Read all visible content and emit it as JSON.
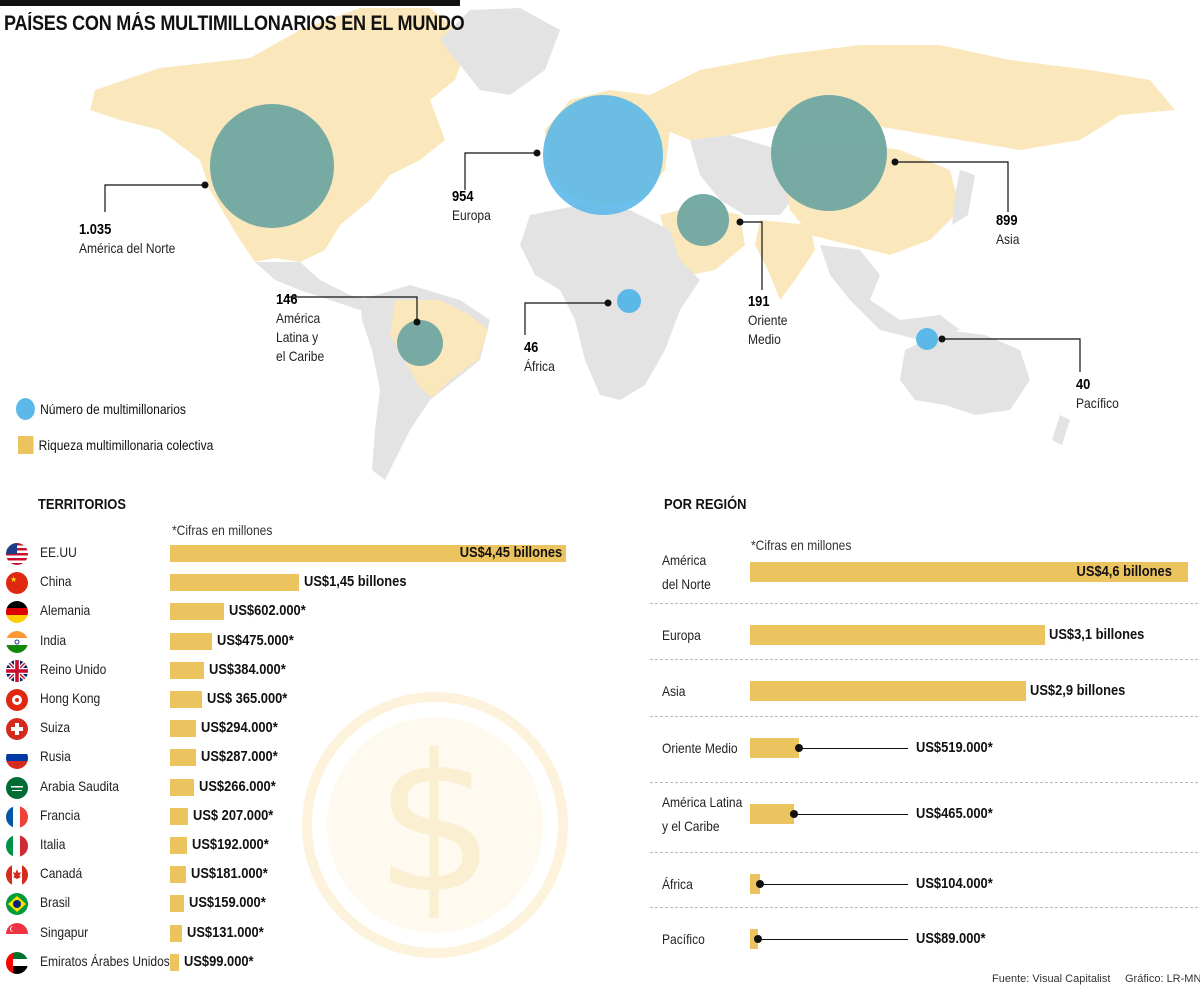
{
  "header": {
    "title": "PAÍSES CON MÁS MULTIMILLONARIOS EN EL MUNDO"
  },
  "colors": {
    "land_gray": "#e3e3e3",
    "wealth_yellow": "#fbe7bc",
    "bar_yellow": "#ecc45f",
    "bubble_blue": "#5bb8e8",
    "bubble_overlap": "#6fa7a0"
  },
  "map": {
    "regions": [
      {
        "value": "1.035",
        "name": "América del Norte",
        "billionaires": 1035
      },
      {
        "value": "954",
        "name": "Europa",
        "billionaires": 954
      },
      {
        "value": "899",
        "name": "Asia",
        "billionaires": 899
      },
      {
        "value": "146",
        "name": "América Latina y el Caribe",
        "name_lines": [
          "América",
          "Latina y",
          "el Caribe"
        ],
        "billionaires": 146
      },
      {
        "value": "46",
        "name": "África",
        "billionaires": 46
      },
      {
        "value": "191",
        "name": "Oriente Medio",
        "name_lines": [
          "Oriente",
          "Medio"
        ],
        "billionaires": 191
      },
      {
        "value": "40",
        "name": "Pacífico",
        "billionaires": 40
      }
    ],
    "legend": {
      "circle_label": "Número de multimillonarios",
      "square_label": "Riqueza multimillonaria colectiva"
    }
  },
  "territories": {
    "title": "TERRITORIOS",
    "note": "*Cifras en millones",
    "items": [
      {
        "name": "EE.UU",
        "label": "US$4,45 billones",
        "value": 4450000,
        "flag": "us-flag-icon"
      },
      {
        "name": "China",
        "label": "US$1,45 billones",
        "value": 1450000,
        "flag": "china-flag-icon"
      },
      {
        "name": "Alemania",
        "label": "US$602.000*",
        "value": 602000,
        "flag": "germany-flag-icon"
      },
      {
        "name": "India",
        "label": "US$475.000*",
        "value": 475000,
        "flag": "india-flag-icon"
      },
      {
        "name": "Reino Unido",
        "label": "US$384.000*",
        "value": 384000,
        "flag": "uk-flag-icon"
      },
      {
        "name": "Hong Kong",
        "label": "US$ 365.000*",
        "value": 365000,
        "flag": "hong-kong-flag-icon"
      },
      {
        "name": "Suiza",
        "label": "US$294.000*",
        "value": 294000,
        "flag": "switzerland-flag-icon"
      },
      {
        "name": "Rusia",
        "label": "US$287.000*",
        "value": 287000,
        "flag": "russia-flag-icon"
      },
      {
        "name": "Arabia Saudita",
        "label": "US$266.000*",
        "value": 266000,
        "flag": "saudi-arabia-flag-icon"
      },
      {
        "name": "Francia",
        "label": "US$ 207.000*",
        "value": 207000,
        "flag": "france-flag-icon"
      },
      {
        "name": "Italia",
        "label": "US$192.000*",
        "value": 192000,
        "flag": "italy-flag-icon"
      },
      {
        "name": "Canadá",
        "label": "US$181.000*",
        "value": 181000,
        "flag": "canada-flag-icon"
      },
      {
        "name": "Brasil",
        "label": "US$159.000*",
        "value": 159000,
        "flag": "brazil-flag-icon"
      },
      {
        "name": "Singapur",
        "label": "US$131.000*",
        "value": 131000,
        "flag": "singapore-flag-icon"
      },
      {
        "name": "Emiratos Árabes Unidos",
        "label": "US$99.000*",
        "value": 99000,
        "flag": "uae-flag-icon"
      }
    ]
  },
  "regions_chart": {
    "title": "POR REGIÓN",
    "note": "*Cifras en millones",
    "items": [
      {
        "name": "América del Norte",
        "name_lines": [
          "América",
          "del Norte"
        ],
        "label": "US$4,6 billones",
        "value": 4600000
      },
      {
        "name": "Europa",
        "label": "US$3,1 billones",
        "value": 3100000
      },
      {
        "name": "Asia",
        "label": "US$2,9 billones",
        "value": 2900000
      },
      {
        "name": "Oriente Medio",
        "label": "US$519.000*",
        "value": 519000
      },
      {
        "name": "América Latina y el Caribe",
        "name_lines": [
          "América Latina",
          "y el Caribe"
        ],
        "label": "US$465.000*",
        "value": 465000
      },
      {
        "name": "África",
        "label": "US$104.000*",
        "value": 104000
      },
      {
        "name": "Pacífico",
        "label": "US$89.000*",
        "value": 89000
      }
    ]
  },
  "chart_data": [
    {
      "type": "bar",
      "title": "TERRITORIOS",
      "note": "*Cifras en millones",
      "categories": [
        "EE.UU",
        "China",
        "Alemania",
        "India",
        "Reino Unido",
        "Hong Kong",
        "Suiza",
        "Rusia",
        "Arabia Saudita",
        "Francia",
        "Italia",
        "Canadá",
        "Brasil",
        "Singapur",
        "Emiratos Árabes Unidos"
      ],
      "values": [
        4450000,
        1450000,
        602000,
        475000,
        384000,
        365000,
        294000,
        287000,
        266000,
        207000,
        192000,
        181000,
        159000,
        131000,
        99000
      ],
      "orientation": "horizontal"
    },
    {
      "type": "bar",
      "title": "POR REGIÓN",
      "note": "*Cifras en millones",
      "categories": [
        "América del Norte",
        "Europa",
        "Asia",
        "Oriente Medio",
        "América Latina y el Caribe",
        "África",
        "Pacífico"
      ],
      "values": [
        4600000,
        3100000,
        2900000,
        519000,
        465000,
        104000,
        89000
      ],
      "orientation": "horizontal"
    }
  ],
  "footer": {
    "source": "Fuente: Visual Capitalist",
    "credit": "Gráfico: LR-MN"
  }
}
